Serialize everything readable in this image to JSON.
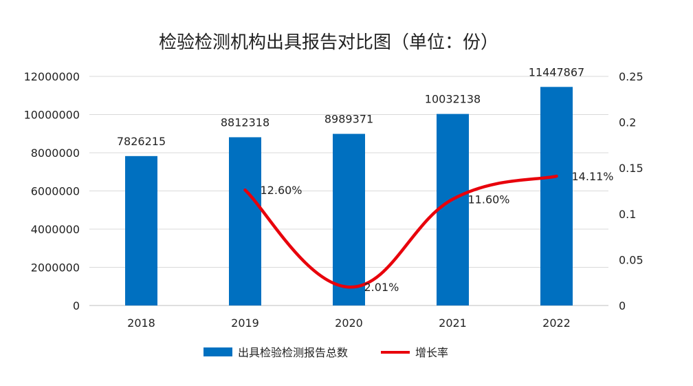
{
  "chart_data": {
    "type": "bar+line",
    "title": "检验检测机构出具报告对比图（单位：份）",
    "categories": [
      "2018",
      "2019",
      "2020",
      "2021",
      "2022"
    ],
    "series": [
      {
        "name": "出具检验检测报告总数",
        "type": "bar",
        "axis": "left",
        "color": "#0070C0",
        "values": [
          7826215,
          8812318,
          8989371,
          10032138,
          11447867
        ],
        "labels": [
          "7826215",
          "8812318",
          "8989371",
          "10032138",
          "11447867"
        ]
      },
      {
        "name": "增长率",
        "type": "line",
        "axis": "right",
        "color": "#E8000B",
        "values": [
          null,
          0.126,
          0.0201,
          0.116,
          0.1411
        ],
        "labels": [
          "",
          "12.60%",
          "2.01%",
          "11.60%",
          "14.11%"
        ]
      }
    ],
    "y_left": {
      "min": 0,
      "max": 12000000,
      "ticks": [
        "0",
        "2000000",
        "4000000",
        "6000000",
        "8000000",
        "10000000",
        "12000000"
      ]
    },
    "y_right": {
      "min": 0,
      "max": 0.25,
      "ticks": [
        "0",
        "0.05",
        "0.1",
        "0.15",
        "0.2",
        "0.25"
      ]
    },
    "grid": true,
    "legend_position": "bottom"
  }
}
